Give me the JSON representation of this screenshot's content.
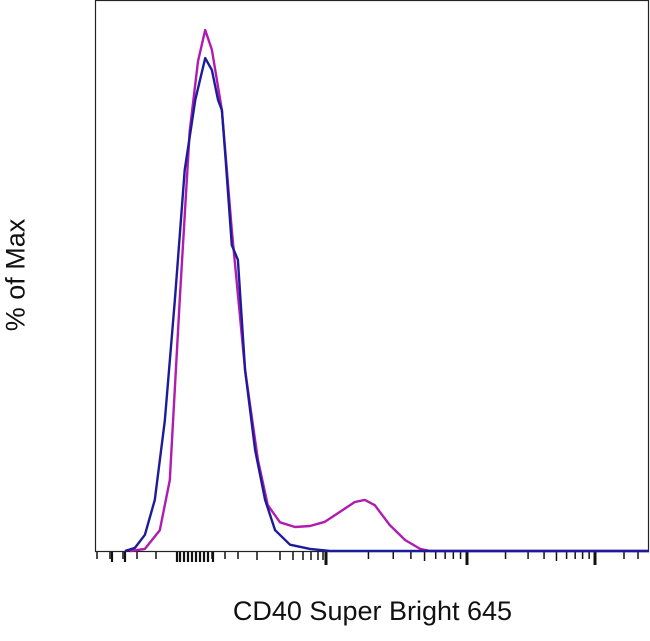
{
  "chart_data": {
    "type": "line",
    "title": "",
    "xlabel": "CD40 Super Bright 645",
    "ylabel": "% of Max",
    "x_scale": "biexponential (log decades, no tick labels printed)",
    "xlim": [
      0,
      100
    ],
    "ylim": [
      0,
      100
    ],
    "grid": false,
    "legend": "none",
    "series": [
      {
        "color": "#b01cb0",
        "x": [
          6.3,
          9.0,
          11.7,
          13.5,
          15.3,
          17.1,
          18.6,
          19.9,
          21.1,
          22.9,
          24.7,
          27.1,
          29.4,
          31.2,
          33.4,
          36.1,
          38.8,
          41.5,
          44.2,
          46.9,
          48.7,
          50.5,
          53.2,
          56.0,
          58.7,
          60.5,
          100
        ],
        "y": [
          0,
          0.4,
          4.0,
          13.6,
          48.4,
          80.6,
          94.0,
          100,
          96.2,
          84.6,
          61.6,
          34.7,
          17.5,
          8.8,
          5.5,
          4.6,
          4.8,
          5.6,
          7.5,
          9.4,
          9.8,
          8.8,
          5.0,
          2.1,
          0.4,
          0,
          0
        ]
      },
      {
        "color": "#1c1c9a",
        "x": [
          5.4,
          7.2,
          9.0,
          10.8,
          12.6,
          14.4,
          16.2,
          18.1,
          19.9,
          21.1,
          22.2,
          22.9,
          23.6,
          24.7,
          25.8,
          27.1,
          28.9,
          30.7,
          32.5,
          35.2,
          38.8,
          42.4,
          100
        ],
        "y": [
          0,
          0.6,
          3.1,
          9.8,
          25.0,
          48.0,
          73.1,
          86.6,
          94.6,
          92.3,
          86.6,
          84.6,
          75.0,
          58.7,
          55.9,
          34.7,
          19.4,
          9.8,
          4.0,
          1.2,
          0.4,
          0,
          0
        ]
      }
    ]
  }
}
